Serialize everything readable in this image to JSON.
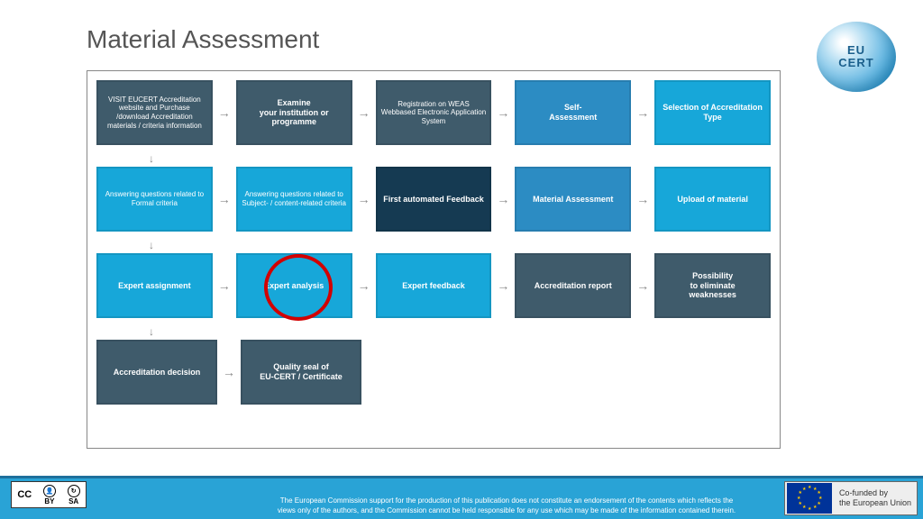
{
  "title": "Material Assessment",
  "logo": {
    "line1": "EU",
    "line2": "CERT"
  },
  "colors": {
    "dark": "#3f5b6b",
    "darker": "#2c4858",
    "navy": "#153a52",
    "bright": "#17a7d9",
    "mid": "#2c8cc3",
    "arrow": "#8fa3af"
  },
  "rows": [
    [
      {
        "text": "VISIT EUCERT Accreditation website and Purchase /download Accreditation materials / criteria information",
        "color": "#3f5b6b",
        "small": true
      },
      {
        "text": "Examine\nyour institution or programme",
        "color": "#3f5b6b"
      },
      {
        "text": "Registration on WEAS\nWebbased Electronic Application System",
        "color": "#3f5b6b",
        "small": true
      },
      {
        "text": "Self-\nAssessment",
        "color": "#2c8cc3"
      },
      {
        "text": "Selection of Accreditation Type",
        "color": "#17a7d9"
      }
    ],
    [
      {
        "text": "Answering questions related to\nFormal criteria",
        "color": "#17a7d9",
        "small": true
      },
      {
        "text": "Answering questions related to\nSubject- / content-related criteria",
        "color": "#17a7d9",
        "small": true
      },
      {
        "text": "First automated Feedback",
        "color": "#153a52"
      },
      {
        "text": "Material Assessment",
        "color": "#2c8cc3"
      },
      {
        "text": "Upload of material",
        "color": "#17a7d9"
      }
    ],
    [
      {
        "text": "Expert assignment",
        "color": "#17a7d9"
      },
      {
        "text": "Expert analysis",
        "color": "#17a7d9",
        "highlight": true
      },
      {
        "text": "Expert feedback",
        "color": "#17a7d9"
      },
      {
        "text": "Accreditation report",
        "color": "#3f5b6b"
      },
      {
        "text": "Possibility\nto eliminate\nweaknesses",
        "color": "#3f5b6b"
      }
    ],
    [
      {
        "text": "Accreditation decision",
        "color": "#3f5b6b"
      },
      {
        "text": "Quality seal of\nEU-CERT / Certificate",
        "color": "#3f5b6b"
      }
    ]
  ],
  "footer_text": "The European Commission support for the production of this publication does not constitute an endorsement of the contents which reflects the views only of the authors, and the Commission cannot be held responsible for any use which may be made of the information contained therein.",
  "cofund": {
    "line1": "Co-funded by",
    "line2": "the European Union"
  },
  "cc": {
    "by": "BY",
    "sa": "SA"
  }
}
